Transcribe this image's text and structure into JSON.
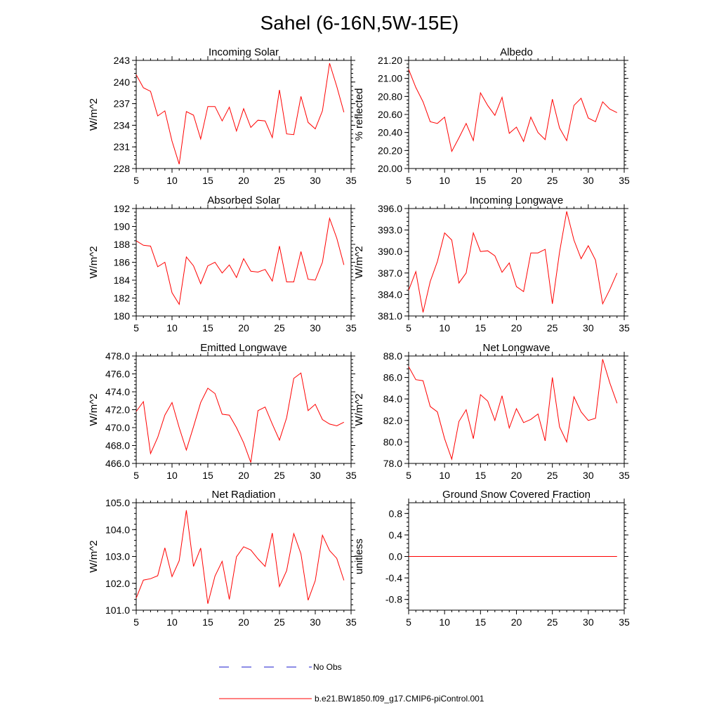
{
  "figure": {
    "title": "Sahel (6-16N,5W-15E)"
  },
  "legend": {
    "obs_label": "No Obs",
    "model_label": "b.e21.BW1850.f09_g17.CMIP6-piControl.001",
    "obs_color": "#1a1acc",
    "model_color": "#ff0000"
  },
  "chart_data": [
    {
      "type": "line",
      "title": "Incoming Solar",
      "ylabel": "W/m^2",
      "xlim": [
        5,
        35
      ],
      "xticks": [
        5,
        10,
        15,
        20,
        25,
        30,
        35
      ],
      "ylim": [
        228,
        243
      ],
      "yticks": [
        228,
        231,
        234,
        237,
        240,
        243
      ],
      "ytick_labels": [
        "228",
        "231",
        "234",
        "237",
        "240",
        "243"
      ],
      "x": [
        5,
        6,
        7,
        8,
        9,
        10,
        11,
        12,
        13,
        14,
        15,
        16,
        17,
        18,
        19,
        20,
        21,
        22,
        23,
        24,
        25,
        26,
        27,
        28,
        29,
        30,
        31,
        32,
        33,
        34
      ],
      "values": [
        241.0,
        239.2,
        238.7,
        235.3,
        236.0,
        231.8,
        228.6,
        235.9,
        235.4,
        232.1,
        236.6,
        236.6,
        234.6,
        236.5,
        233.2,
        236.3,
        233.7,
        234.7,
        234.6,
        232.3,
        238.9,
        232.8,
        232.7,
        238.0,
        234.4,
        233.5,
        236.0,
        242.6,
        239.4,
        235.8
      ],
      "color": "#ff0000"
    },
    {
      "type": "line",
      "title": "Albedo",
      "ylabel": "% reflected",
      "xlim": [
        5,
        35
      ],
      "xticks": [
        5,
        10,
        15,
        20,
        25,
        30,
        35
      ],
      "ylim": [
        20.0,
        21.2
      ],
      "yticks": [
        20.0,
        20.2,
        20.4,
        20.6,
        20.8,
        21.0,
        21.2
      ],
      "ytick_labels": [
        "20.00",
        "20.20",
        "20.40",
        "20.60",
        "20.80",
        "21.00",
        "21.20"
      ],
      "x": [
        5,
        6,
        7,
        8,
        9,
        10,
        11,
        12,
        13,
        14,
        15,
        16,
        17,
        18,
        19,
        20,
        21,
        22,
        23,
        24,
        25,
        26,
        27,
        28,
        29,
        30,
        31,
        32,
        33,
        34
      ],
      "values": [
        21.1,
        20.9,
        20.74,
        20.52,
        20.5,
        20.57,
        20.19,
        20.34,
        20.5,
        20.31,
        20.84,
        20.7,
        20.59,
        20.79,
        20.39,
        20.46,
        20.3,
        20.57,
        20.4,
        20.32,
        20.77,
        20.45,
        20.31,
        20.7,
        20.78,
        20.56,
        20.52,
        20.74,
        20.66,
        20.62
      ],
      "color": "#ff0000"
    },
    {
      "type": "line",
      "title": "Absorbed Solar",
      "ylabel": "W/m^2",
      "xlim": [
        5,
        35
      ],
      "xticks": [
        5,
        10,
        15,
        20,
        25,
        30,
        35
      ],
      "ylim": [
        180,
        192
      ],
      "yticks": [
        180,
        182,
        184,
        186,
        188,
        190,
        192
      ],
      "ytick_labels": [
        "180",
        "182",
        "184",
        "186",
        "188",
        "190",
        "192"
      ],
      "x": [
        5,
        6,
        7,
        8,
        9,
        10,
        11,
        12,
        13,
        14,
        15,
        16,
        17,
        18,
        19,
        20,
        21,
        22,
        23,
        24,
        25,
        26,
        27,
        28,
        29,
        30,
        31,
        32,
        33,
        34
      ],
      "values": [
        188.4,
        187.9,
        187.8,
        185.5,
        186.0,
        182.6,
        181.3,
        186.6,
        185.6,
        183.6,
        185.6,
        186.0,
        184.8,
        185.7,
        184.3,
        186.4,
        185.0,
        184.9,
        185.2,
        183.9,
        187.8,
        183.8,
        183.8,
        187.2,
        184.1,
        184.0,
        186.0,
        190.9,
        188.7,
        185.7
      ],
      "color": "#ff0000"
    },
    {
      "type": "line",
      "title": "Incoming Longwave",
      "ylabel": "W/m^2",
      "xlim": [
        5,
        35
      ],
      "xticks": [
        5,
        10,
        15,
        20,
        25,
        30,
        35
      ],
      "ylim": [
        381.0,
        396.0
      ],
      "yticks": [
        381,
        384,
        387,
        390,
        393,
        396
      ],
      "ytick_labels": [
        "381.0",
        "384.0",
        "387.0",
        "390.0",
        "393.0",
        "396.0"
      ],
      "x": [
        5,
        6,
        7,
        8,
        9,
        10,
        11,
        12,
        13,
        14,
        15,
        16,
        17,
        18,
        19,
        20,
        21,
        22,
        23,
        24,
        25,
        26,
        27,
        28,
        29,
        30,
        31,
        32,
        33,
        34
      ],
      "values": [
        384.6,
        387.2,
        381.5,
        385.8,
        388.6,
        392.6,
        391.6,
        385.6,
        387.0,
        392.6,
        390.0,
        390.1,
        389.4,
        387.1,
        388.4,
        385.1,
        384.4,
        389.8,
        389.8,
        390.3,
        382.7,
        389.9,
        395.6,
        391.6,
        389.0,
        390.8,
        388.8,
        382.7,
        384.7,
        387.0
      ],
      "color": "#ff0000"
    },
    {
      "type": "line",
      "title": "Emitted Longwave",
      "ylabel": "W/m^2",
      "xlim": [
        5,
        35
      ],
      "xticks": [
        5,
        10,
        15,
        20,
        25,
        30,
        35
      ],
      "ylim": [
        466.0,
        478.0
      ],
      "yticks": [
        466,
        468,
        470,
        472,
        474,
        476,
        478
      ],
      "ytick_labels": [
        "466.0",
        "468.0",
        "470.0",
        "472.0",
        "474.0",
        "476.0",
        "478.0"
      ],
      "x": [
        5,
        6,
        7,
        8,
        9,
        10,
        11,
        12,
        13,
        14,
        15,
        16,
        17,
        18,
        19,
        20,
        21,
        22,
        23,
        24,
        25,
        26,
        27,
        28,
        29,
        30,
        31,
        32,
        33,
        34
      ],
      "values": [
        471.8,
        472.9,
        467.1,
        468.9,
        471.4,
        472.8,
        470.0,
        467.5,
        470.1,
        472.8,
        474.4,
        473.8,
        471.5,
        471.4,
        470.0,
        468.3,
        466.1,
        471.9,
        472.3,
        470.4,
        468.6,
        471.1,
        475.5,
        476.1,
        471.9,
        472.6,
        470.9,
        470.4,
        470.2,
        470.6
      ],
      "color": "#ff0000"
    },
    {
      "type": "line",
      "title": "Net Longwave",
      "ylabel": "W/m^2",
      "xlim": [
        5,
        35
      ],
      "xticks": [
        5,
        10,
        15,
        20,
        25,
        30,
        35
      ],
      "ylim": [
        78.0,
        88.0
      ],
      "yticks": [
        78,
        80,
        82,
        84,
        86,
        88
      ],
      "ytick_labels": [
        "78.0",
        "80.0",
        "82.0",
        "84.0",
        "86.0",
        "88.0"
      ],
      "x": [
        5,
        6,
        7,
        8,
        9,
        10,
        11,
        12,
        13,
        14,
        15,
        16,
        17,
        18,
        19,
        20,
        21,
        22,
        23,
        24,
        25,
        26,
        27,
        28,
        29,
        30,
        31,
        32,
        33,
        34
      ],
      "values": [
        87.0,
        85.8,
        85.7,
        83.3,
        82.8,
        80.3,
        78.4,
        81.9,
        83.0,
        80.3,
        84.4,
        83.8,
        82.0,
        84.3,
        81.3,
        83.1,
        81.8,
        82.1,
        82.6,
        80.1,
        86.0,
        81.4,
        80.0,
        84.2,
        82.8,
        82.0,
        82.2,
        87.7,
        85.5,
        83.6
      ],
      "color": "#ff0000"
    },
    {
      "type": "line",
      "title": "Net Radiation",
      "ylabel": "W/m^2",
      "xlim": [
        5,
        35
      ],
      "xticks": [
        5,
        10,
        15,
        20,
        25,
        30,
        35
      ],
      "ylim": [
        101.0,
        105.0
      ],
      "yticks": [
        101,
        102,
        103,
        104,
        105
      ],
      "ytick_labels": [
        "101.0",
        "102.0",
        "103.0",
        "104.0",
        "105.0"
      ],
      "x": [
        5,
        6,
        7,
        8,
        9,
        10,
        11,
        12,
        13,
        14,
        15,
        16,
        17,
        18,
        19,
        20,
        21,
        22,
        23,
        24,
        25,
        26,
        27,
        28,
        29,
        30,
        31,
        32,
        33,
        34
      ],
      "values": [
        101.45,
        102.12,
        102.17,
        102.28,
        103.32,
        102.25,
        102.84,
        104.72,
        102.63,
        103.31,
        101.24,
        102.27,
        102.82,
        101.4,
        102.99,
        103.36,
        103.24,
        102.91,
        102.63,
        103.87,
        101.88,
        102.47,
        103.85,
        103.1,
        101.37,
        102.1,
        103.79,
        103.22,
        102.93,
        102.11
      ],
      "color": "#ff0000"
    },
    {
      "type": "line",
      "title": "Ground Snow Covered Fraction",
      "ylabel": "unitless",
      "xlim": [
        5,
        35
      ],
      "xticks": [
        5,
        10,
        15,
        20,
        25,
        30,
        35
      ],
      "ylim": [
        -1.0,
        1.0
      ],
      "yticks": [
        -0.8,
        -0.4,
        0.0,
        0.4,
        0.8
      ],
      "ytick_labels": [
        "-0.8",
        "-0.4",
        "0.0",
        "0.4",
        "0.8"
      ],
      "x": [
        5,
        6,
        7,
        8,
        9,
        10,
        11,
        12,
        13,
        14,
        15,
        16,
        17,
        18,
        19,
        20,
        21,
        22,
        23,
        24,
        25,
        26,
        27,
        28,
        29,
        30,
        31,
        32,
        33,
        34
      ],
      "values": [
        0,
        0,
        0,
        0,
        0,
        0,
        0,
        0,
        0,
        0,
        0,
        0,
        0,
        0,
        0,
        0,
        0,
        0,
        0,
        0,
        0,
        0,
        0,
        0,
        0,
        0,
        0,
        0,
        0,
        0
      ],
      "color": "#ff0000"
    }
  ]
}
